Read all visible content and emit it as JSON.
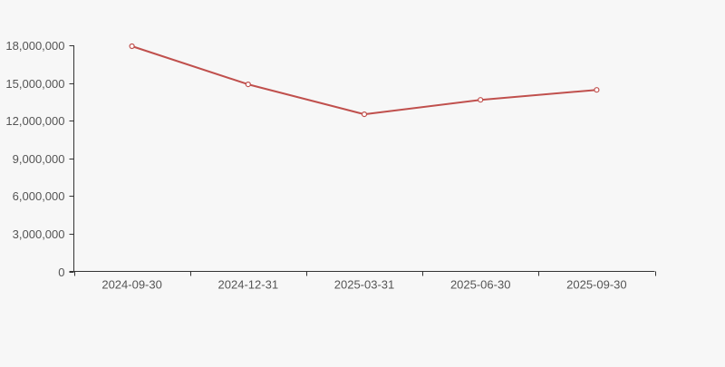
{
  "chart": {
    "background_color": "#f7f7f7",
    "axis_color": "#333333",
    "label_color": "#555555",
    "line_color": "#c0504d",
    "marker_fill_color": "#ffffff"
  },
  "chart_data": {
    "type": "line",
    "title": "",
    "xlabel": "",
    "ylabel": "",
    "categories": [
      "2024-09-30",
      "2024-12-31",
      "2025-03-31",
      "2025-06-30",
      "2025-09-30"
    ],
    "series": [
      {
        "name": "series-1",
        "values": [
          17930000,
          14890000,
          12510000,
          13660000,
          14450000
        ]
      }
    ],
    "ylim": [
      0,
      18000000
    ],
    "y_ticks": [
      0,
      3000000,
      6000000,
      9000000,
      12000000,
      15000000,
      18000000
    ],
    "y_tick_labels": [
      "0",
      "3,000,000",
      "6,000,000",
      "9,000,000",
      "12,000,000",
      "15,000,000",
      "18,000,000"
    ],
    "grid": false,
    "legend": false,
    "marker_style": "open-circle",
    "x_tick_position": "between-categories"
  }
}
